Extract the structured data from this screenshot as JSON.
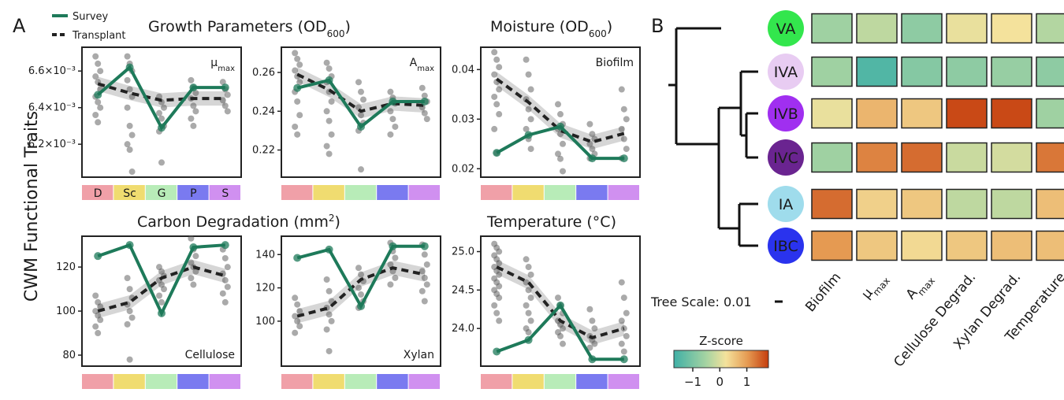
{
  "panel_a_label": "A",
  "panel_b_label": "B",
  "y_axis_label": "CWM Functional Traits",
  "legend": {
    "survey": "Survey",
    "transplant": "Transplant"
  },
  "colors": {
    "survey": "#1e7a5a",
    "transplant": "#222222",
    "points": "#555555",
    "band": "#c8c8c8"
  },
  "sources": [
    {
      "label": "D",
      "color": "#f0a0a8"
    },
    {
      "label": "Sc",
      "color": "#f0dc70"
    },
    {
      "label": "G",
      "color": "#b8ecb8"
    },
    {
      "label": "P",
      "color": "#7a7af0"
    },
    {
      "label": "S",
      "color": "#d090f0"
    }
  ],
  "header_row1": {
    "main": "Growth Parameters (OD",
    "sub": "600",
    "end": ")"
  },
  "header_row1_right": {
    "main": "Moisture (OD",
    "sub": "600",
    "end": ")"
  },
  "header_row2": {
    "main": "Carbon Degradation (mm",
    "sup": "2",
    "end": ")"
  },
  "header_row2_right": {
    "main": "Temperature (°C)"
  },
  "chart_data": [
    {
      "type": "line",
      "corner_label": "μmax",
      "corner_main": "μ",
      "corner_sub": "max",
      "corner_pos": "top",
      "ylim": [
        6.02,
        6.73
      ],
      "yticks": [
        6.2,
        6.4,
        6.6
      ],
      "ytick_labels": [
        "6.2×10⁻³",
        "6.4×10⁻³",
        "6.6×10⁻³"
      ],
      "categories": [
        "D",
        "Sc",
        "G",
        "P",
        "S"
      ],
      "survey": [
        6.47,
        6.62,
        6.29,
        6.51,
        6.51
      ],
      "transplant": [
        6.53,
        6.48,
        6.44,
        6.45,
        6.45
      ],
      "points": [
        [
          6.68,
          6.64,
          6.6,
          6.57,
          6.54,
          6.5,
          6.46,
          6.43,
          6.4,
          6.36,
          6.32
        ],
        [
          6.68,
          6.64,
          6.6,
          6.55,
          6.5,
          6.46,
          6.4,
          6.3,
          6.25,
          6.2,
          6.17,
          6.05
        ],
        [
          6.46,
          6.43,
          6.4,
          6.37,
          6.34,
          6.3,
          6.27,
          6.1
        ],
        [
          6.55,
          6.51,
          6.48,
          6.45,
          6.41,
          6.38,
          6.34,
          6.3
        ],
        [
          6.54,
          6.5,
          6.47,
          6.44,
          6.41,
          6.38
        ]
      ]
    },
    {
      "type": "line",
      "corner_label": "Amax",
      "corner_main": "A",
      "corner_sub": "max",
      "corner_pos": "top",
      "ylim": [
        0.206,
        0.273
      ],
      "yticks": [
        0.22,
        0.24,
        0.26
      ],
      "ytick_labels": [
        "0.22",
        "0.24",
        "0.26"
      ],
      "categories": [
        "D",
        "Sc",
        "G",
        "P",
        "S"
      ],
      "survey": [
        0.252,
        0.256,
        0.232,
        0.245,
        0.245
      ],
      "transplant": [
        0.259,
        0.251,
        0.24,
        0.244,
        0.243
      ],
      "points": [
        [
          0.27,
          0.267,
          0.264,
          0.261,
          0.258,
          0.255,
          0.25,
          0.245,
          0.238,
          0.232,
          0.228
        ],
        [
          0.265,
          0.262,
          0.258,
          0.255,
          0.25,
          0.245,
          0.24,
          0.235,
          0.228,
          0.222,
          0.218
        ],
        [
          0.255,
          0.25,
          0.246,
          0.242,
          0.238,
          0.234,
          0.23,
          0.21
        ],
        [
          0.25,
          0.247,
          0.244,
          0.24,
          0.236,
          0.232,
          0.228
        ],
        [
          0.252,
          0.248,
          0.245,
          0.242,
          0.239,
          0.236
        ]
      ]
    },
    {
      "type": "line",
      "corner_label": "Biofilm",
      "corner_pos": "top",
      "ylim": [
        0.0183,
        0.0445
      ],
      "yticks": [
        0.02,
        0.03,
        0.04
      ],
      "ytick_labels": [
        "0.02",
        "0.03",
        "0.04"
      ],
      "categories": [
        "D",
        "Sc",
        "G",
        "P",
        "S"
      ],
      "survey": [
        0.0232,
        0.0268,
        0.0285,
        0.0221,
        0.0221
      ],
      "transplant": [
        0.0381,
        0.0334,
        0.0277,
        0.0254,
        0.0271
      ],
      "points": [
        [
          0.0435,
          0.042,
          0.0405,
          0.039,
          0.0375,
          0.036,
          0.0345,
          0.033,
          0.031,
          0.028,
          0.0232
        ],
        [
          0.042,
          0.039,
          0.036,
          0.034,
          0.032,
          0.03,
          0.028,
          0.026,
          0.024
        ],
        [
          0.033,
          0.031,
          0.029,
          0.028,
          0.027,
          0.025,
          0.023,
          0.022,
          0.0195
        ],
        [
          0.029,
          0.027,
          0.026,
          0.025,
          0.024,
          0.023,
          0.0221
        ],
        [
          0.036,
          0.032,
          0.03,
          0.028,
          0.026,
          0.024,
          0.0221
        ]
      ]
    },
    {
      "type": "line",
      "corner_label": "Cellulose",
      "corner_pos": "bottom",
      "ylim": [
        75,
        134
      ],
      "yticks": [
        80,
        100,
        120
      ],
      "ytick_labels": [
        "80",
        "100",
        "120"
      ],
      "categories": [
        "D",
        "Sc",
        "G",
        "P",
        "S"
      ],
      "survey": [
        125,
        130,
        99,
        129,
        130
      ],
      "transplant": [
        100,
        104,
        115,
        120,
        116
      ],
      "points": [
        [
          107,
          104,
          102,
          100,
          98,
          96,
          93,
          90
        ],
        [
          115,
          110,
          106,
          103,
          100,
          97,
          94,
          78
        ],
        [
          120,
          118,
          116,
          114,
          112,
          110,
          107,
          104
        ],
        [
          133,
          128,
          125,
          122,
          120,
          118,
          115,
          112
        ],
        [
          128,
          124,
          120,
          117,
          114,
          111,
          108,
          104
        ]
      ]
    },
    {
      "type": "line",
      "corner_label": "Xylan",
      "corner_pos": "bottom",
      "ylim": [
        73,
        151
      ],
      "yticks": [
        100,
        120,
        140
      ],
      "ytick_labels": [
        "100",
        "120",
        "140"
      ],
      "categories": [
        "D",
        "Sc",
        "G",
        "P",
        "S"
      ],
      "survey": [
        138,
        143,
        109,
        145,
        145
      ],
      "transplant": [
        103,
        108,
        125,
        132,
        128
      ],
      "points": [
        [
          114,
          110,
          106,
          103,
          100,
          97,
          93
        ],
        [
          125,
          118,
          112,
          108,
          104,
          100,
          95,
          82
        ],
        [
          132,
          128,
          124,
          120,
          116,
          112,
          108
        ],
        [
          147,
          142,
          138,
          134,
          130,
          126,
          122
        ],
        [
          146,
          140,
          134,
          130,
          126,
          122,
          118,
          112
        ]
      ]
    },
    {
      "type": "line",
      "corner_label": "",
      "corner_pos": "none",
      "ylim": [
        23.51,
        25.2
      ],
      "yticks": [
        24.0,
        24.5,
        25.0
      ],
      "ytick_labels": [
        "24.0",
        "24.5",
        "25.0"
      ],
      "categories": [
        "D",
        "Sc",
        "G",
        "P",
        "S"
      ],
      "survey": [
        23.7,
        23.85,
        24.3,
        23.6,
        23.6
      ],
      "transplant": [
        24.8,
        24.6,
        24.1,
        23.88,
        24.0
      ],
      "points": [
        [
          25.1,
          25.05,
          25.0,
          24.95,
          24.9,
          24.85,
          24.8,
          24.75,
          24.7,
          24.65,
          24.6,
          24.55,
          24.5,
          24.45,
          24.4,
          24.3,
          24.2,
          24.1
        ],
        [
          24.9,
          24.8,
          24.7,
          24.6,
          24.5,
          24.4,
          24.3,
          24.2,
          24.1,
          24.0,
          23.95
        ],
        [
          24.4,
          24.3,
          24.2,
          24.1,
          24.05,
          24.0,
          23.95,
          23.9,
          23.8
        ],
        [
          24.25,
          24.1,
          24.0,
          23.9,
          23.85,
          23.8,
          23.75
        ],
        [
          24.6,
          24.4,
          24.2,
          24.1,
          24.0,
          23.9,
          23.8,
          23.7
        ]
      ]
    },
    {
      "type": "heatmap",
      "rows": [
        "VA",
        "IVA",
        "IVB",
        "IVC",
        "IA",
        "IBC"
      ],
      "row_colors": [
        "#33e64d",
        "#e8ccf2",
        "#a02ff0",
        "#6a2490",
        "#9fdcec",
        "#2a33ee"
      ],
      "columns": [
        "Biofilm",
        "μmax",
        "Amax",
        "Cellulose Degrad.",
        "Xylan Degrad.",
        "Temperature"
      ],
      "values": [
        [
          -0.6,
          -0.3,
          -0.8,
          0.1,
          0.2,
          -0.4
        ],
        [
          -0.6,
          -1.5,
          -0.9,
          -0.8,
          -0.7,
          -0.8
        ],
        [
          0.1,
          0.7,
          0.5,
          1.7,
          1.7,
          -0.6
        ],
        [
          -0.6,
          1.2,
          1.4,
          -0.2,
          -0.1,
          1.3
        ],
        [
          1.4,
          0.4,
          0.5,
          -0.3,
          -0.3,
          0.6
        ],
        [
          1.0,
          0.5,
          0.3,
          0.5,
          0.6,
          0.6
        ]
      ],
      "colorbar_title": "Z-score",
      "colorbar_ticks": [
        "−1",
        "0",
        "1"
      ],
      "tree_scale": "Tree Scale: 0.01"
    }
  ]
}
